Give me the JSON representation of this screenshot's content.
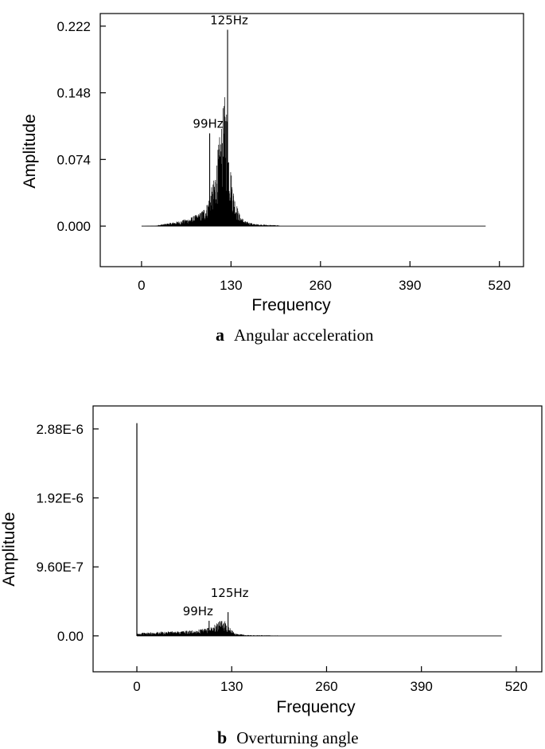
{
  "chart_data": [
    {
      "type": "line",
      "caption_letter": "a",
      "caption_text": "Angular acceleration",
      "xlabel": "Frequency",
      "ylabel": "Amplitude",
      "xlim": [
        -60,
        555
      ],
      "ylim": [
        -0.045,
        0.236
      ],
      "xticks": [
        0,
        130,
        260,
        390,
        520
      ],
      "xtick_labels": [
        "0",
        "130",
        "260",
        "390",
        "520"
      ],
      "yticks": [
        0.0,
        0.074,
        0.148,
        0.222
      ],
      "ytick_labels": [
        "0.000",
        "0.074",
        "0.148",
        "0.222"
      ],
      "grid": false,
      "legend": "none",
      "x_range": [
        0,
        500
      ],
      "envelope": [
        [
          0,
          0
        ],
        [
          20,
          0.0005
        ],
        [
          40,
          0.003
        ],
        [
          55,
          0.005
        ],
        [
          70,
          0.008
        ],
        [
          85,
          0.013
        ],
        [
          95,
          0.022
        ],
        [
          105,
          0.045
        ],
        [
          112,
          0.08
        ],
        [
          116,
          0.1
        ],
        [
          120,
          0.125
        ],
        [
          123,
          0.13
        ],
        [
          126,
          0.09
        ],
        [
          130,
          0.055
        ],
        [
          135,
          0.03
        ],
        [
          142,
          0.012
        ],
        [
          150,
          0.005
        ],
        [
          165,
          0.002
        ],
        [
          190,
          0.001
        ],
        [
          250,
          0.0005
        ],
        [
          500,
          0.0002
        ]
      ],
      "peaks": [
        {
          "x": 99,
          "y": 0.103
        },
        {
          "x": 125,
          "y": 0.218
        }
      ],
      "annotations": [
        {
          "text": "125Hz",
          "x": 125,
          "y": 0.218
        },
        {
          "text": "99Hz",
          "x": 99,
          "y": 0.103
        }
      ]
    },
    {
      "type": "line",
      "caption_letter": "b",
      "caption_text": "Overturning angle",
      "xlabel": "Frequency",
      "ylabel": "Amplitude",
      "xlim": [
        -60,
        555
      ],
      "ylim": [
        -5e-07,
        3.2e-06
      ],
      "xticks": [
        0,
        130,
        260,
        390,
        520
      ],
      "xtick_labels": [
        "0",
        "130",
        "260",
        "390",
        "520"
      ],
      "yticks": [
        0,
        9.6e-07,
        1.92e-06,
        2.88e-06
      ],
      "ytick_labels": [
        "0.00",
        "9.60E-7",
        "1.92E-6",
        "2.88E-6"
      ],
      "grid": false,
      "legend": "none",
      "x_range": [
        0,
        500
      ],
      "initial_peak": {
        "x": 0,
        "y": 2.96e-06
      },
      "envelope": [
        [
          0,
          3e-08
        ],
        [
          10,
          4e-08
        ],
        [
          30,
          5e-08
        ],
        [
          60,
          6e-08
        ],
        [
          80,
          7e-08
        ],
        [
          95,
          9e-08
        ],
        [
          105,
          1.3e-07
        ],
        [
          112,
          1.7e-07
        ],
        [
          118,
          2e-07
        ],
        [
          122,
          1.8e-07
        ],
        [
          128,
          9e-08
        ],
        [
          135,
          3e-08
        ],
        [
          150,
          1e-08
        ],
        [
          200,
          4e-09
        ],
        [
          500,
          2e-09
        ]
      ],
      "peaks": [
        {
          "x": 99,
          "y": 2.1e-07
        },
        {
          "x": 125,
          "y": 3.3e-07
        }
      ],
      "annotations": [
        {
          "text": "125Hz",
          "x": 125,
          "y": 3.3e-07
        },
        {
          "text": "99Hz",
          "x": 99,
          "y": 2.1e-07
        }
      ]
    }
  ]
}
